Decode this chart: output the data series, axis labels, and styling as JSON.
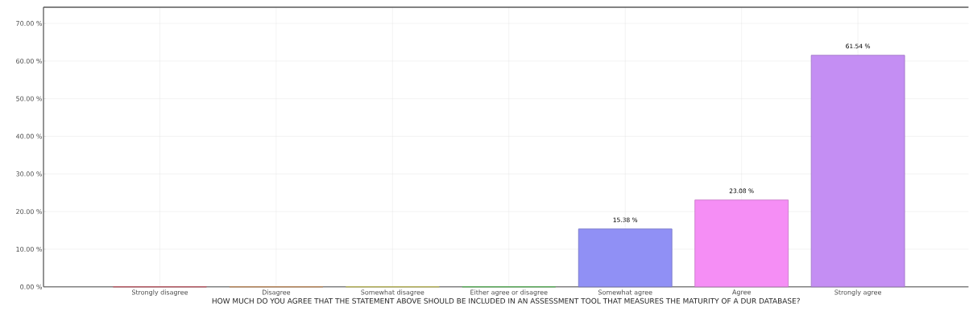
{
  "chart_data": {
    "type": "bar",
    "xlabel": "HOW MUCH DO YOU AGREE THAT THE STATEMENT ABOVE SHOULD BE INCLUDED IN AN ASSESSMENT TOOL THAT MEASURES THE MATURITY OF A DUR DATABASE?",
    "categories": [
      "Strongly disagree",
      "Disagree",
      "Somewhat disagree",
      "Either agree or disagree",
      "Somewhat agree",
      "Agree",
      "Strongly agree"
    ],
    "values": [
      0,
      0,
      0,
      0,
      15.38,
      23.08,
      61.54
    ],
    "colors": [
      "#f06878",
      "#f0a868",
      "#ece868",
      "#68e068",
      "#9090f5",
      "#f58ef5",
      "#c48ef3"
    ],
    "value_labels": [
      null,
      null,
      null,
      null,
      "15.38 %",
      "23.08 %",
      "61.54 %"
    ],
    "ylim": [
      0,
      74.3
    ],
    "yticks": [
      {
        "value": 0,
        "label": "0.00 %"
      },
      {
        "value": 10,
        "label": "10.00 %"
      },
      {
        "value": 20,
        "label": "20.00 %"
      },
      {
        "value": 30,
        "label": "30.00 %"
      },
      {
        "value": 40,
        "label": "40.00 %"
      },
      {
        "value": 50,
        "label": "50.00 %"
      },
      {
        "value": 60,
        "label": "60.00 %"
      },
      {
        "value": 70,
        "label": "70.00 %"
      }
    ],
    "grid": true
  }
}
